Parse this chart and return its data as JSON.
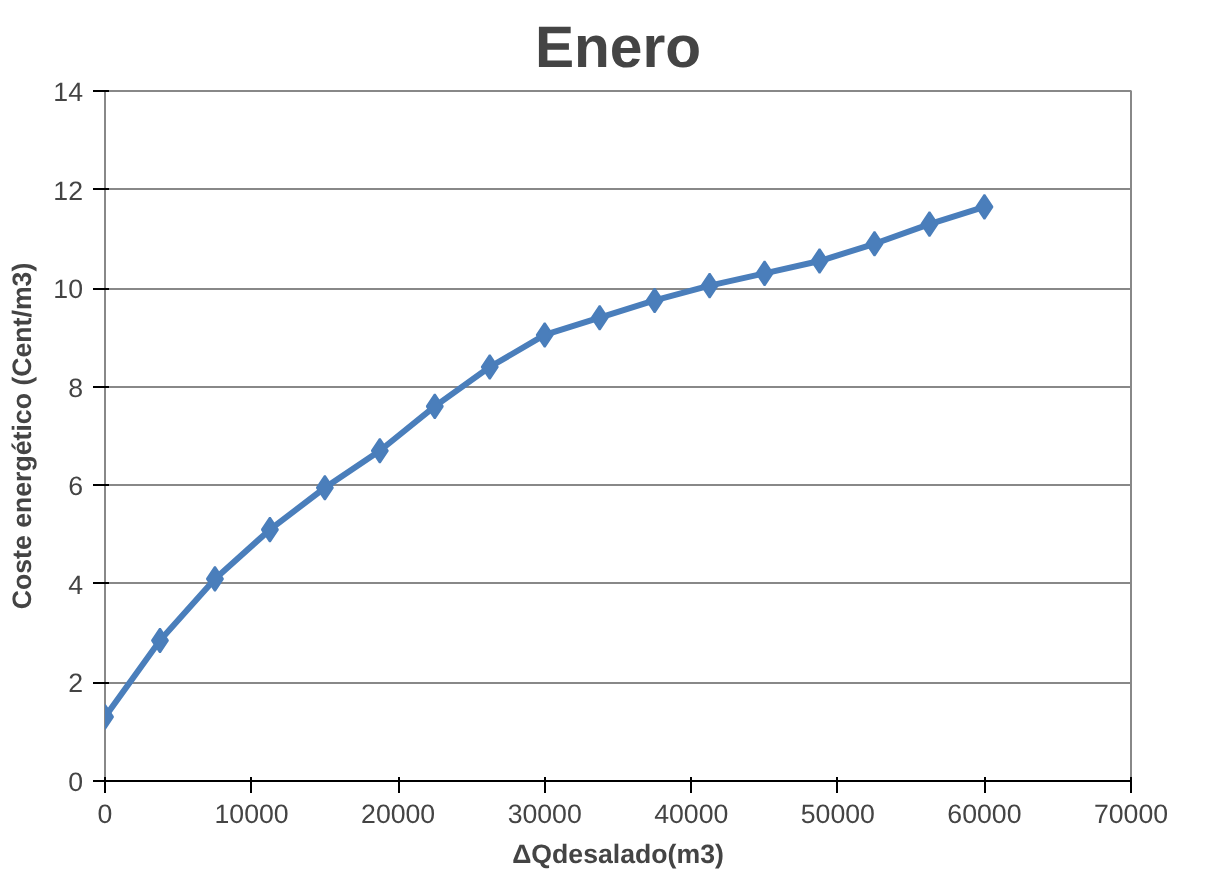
{
  "chart_data": {
    "type": "line",
    "title": "Enero",
    "xlabel": "ΔQdesalado(m3)",
    "ylabel": "Coste energético (Cent/m3)",
    "x": [
      0,
      3750,
      7500,
      11250,
      15000,
      18750,
      22500,
      26250,
      30000,
      33750,
      37500,
      41250,
      45000,
      48750,
      52500,
      56250,
      60000
    ],
    "series": [
      {
        "color": "#4a7ebb",
        "values": [
          1.3,
          2.85,
          4.1,
          5.1,
          5.95,
          6.7,
          7.6,
          8.4,
          9.05,
          9.4,
          9.75,
          10.05,
          10.3,
          10.55,
          10.9,
          11.3,
          11.65
        ]
      }
    ],
    "xlim": [
      0,
      70000
    ],
    "xticks": [
      0,
      10000,
      20000,
      30000,
      40000,
      50000,
      60000,
      70000
    ],
    "ylim": [
      0,
      14
    ],
    "yticks": [
      0,
      2,
      4,
      6,
      8,
      10,
      12,
      14
    ],
    "grid": "y",
    "marker": "diamond",
    "line_style": "solid"
  }
}
